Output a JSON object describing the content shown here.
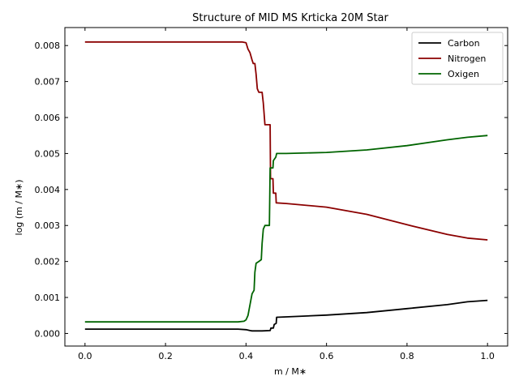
{
  "chart_data": {
    "type": "line",
    "title": "Structure of MID MS Krticka 20M Star",
    "xlabel": "m / M∗",
    "ylabel": "log (m / M∗)",
    "xlim": [
      -0.05,
      1.05
    ],
    "ylim": [
      -0.00035,
      0.0085
    ],
    "xticks": [
      0.0,
      0.2,
      0.4,
      0.6,
      0.8,
      1.0
    ],
    "xtick_labels": [
      "0.0",
      "0.2",
      "0.4",
      "0.6",
      "0.8",
      "1.0"
    ],
    "yticks": [
      0.0,
      0.001,
      0.002,
      0.003,
      0.004,
      0.005,
      0.006,
      0.007,
      0.008
    ],
    "ytick_labels": [
      "0.000",
      "0.001",
      "0.002",
      "0.003",
      "0.004",
      "0.005",
      "0.006",
      "0.007",
      "0.008"
    ],
    "grid": false,
    "legend_position": "top-right",
    "series": [
      {
        "name": "Carbon",
        "color": "#000000",
        "points": [
          [
            0.0,
            0.00012
          ],
          [
            0.38,
            0.00012
          ],
          [
            0.4,
            0.000105
          ],
          [
            0.41,
            8e-05
          ],
          [
            0.415,
            7e-05
          ],
          [
            0.44,
            7e-05
          ],
          [
            0.46,
            8e-05
          ],
          [
            0.462,
            0.00015
          ],
          [
            0.468,
            0.00015
          ],
          [
            0.47,
            0.00025
          ],
          [
            0.475,
            0.00028
          ],
          [
            0.476,
            0.00045
          ],
          [
            0.5,
            0.00046
          ],
          [
            0.6,
            0.00051
          ],
          [
            0.7,
            0.00058
          ],
          [
            0.8,
            0.00069
          ],
          [
            0.9,
            0.0008
          ],
          [
            0.95,
            0.00088
          ],
          [
            1.0,
            0.00092
          ]
        ]
      },
      {
        "name": "Nitrogen",
        "color": "#8b0000",
        "points": [
          [
            0.0,
            0.0081
          ],
          [
            0.39,
            0.0081
          ],
          [
            0.4,
            0.00808
          ],
          [
            0.405,
            0.0079
          ],
          [
            0.41,
            0.0078
          ],
          [
            0.415,
            0.0076
          ],
          [
            0.418,
            0.0075
          ],
          [
            0.422,
            0.0075
          ],
          [
            0.425,
            0.0072
          ],
          [
            0.428,
            0.0068
          ],
          [
            0.432,
            0.0067
          ],
          [
            0.44,
            0.0067
          ],
          [
            0.443,
            0.0064
          ],
          [
            0.447,
            0.0058
          ],
          [
            0.45,
            0.0058
          ],
          [
            0.46,
            0.0058
          ],
          [
            0.461,
            0.0043
          ],
          [
            0.467,
            0.0043
          ],
          [
            0.468,
            0.0039
          ],
          [
            0.474,
            0.0039
          ],
          [
            0.475,
            0.00363
          ],
          [
            0.5,
            0.00361
          ],
          [
            0.6,
            0.00351
          ],
          [
            0.7,
            0.00331
          ],
          [
            0.8,
            0.00302
          ],
          [
            0.9,
            0.00275
          ],
          [
            0.95,
            0.00265
          ],
          [
            1.0,
            0.0026
          ]
        ]
      },
      {
        "name": "Oxigen",
        "color": "#006400",
        "points": [
          [
            0.0,
            0.00032
          ],
          [
            0.38,
            0.00032
          ],
          [
            0.395,
            0.00034
          ],
          [
            0.4,
            0.00038
          ],
          [
            0.405,
            0.0005
          ],
          [
            0.41,
            0.0008
          ],
          [
            0.415,
            0.0011
          ],
          [
            0.42,
            0.0012
          ],
          [
            0.422,
            0.0017
          ],
          [
            0.425,
            0.00195
          ],
          [
            0.432,
            0.002
          ],
          [
            0.438,
            0.00205
          ],
          [
            0.44,
            0.0025
          ],
          [
            0.443,
            0.0029
          ],
          [
            0.447,
            0.003
          ],
          [
            0.458,
            0.003
          ],
          [
            0.46,
            0.0046
          ],
          [
            0.467,
            0.0046
          ],
          [
            0.468,
            0.0048
          ],
          [
            0.474,
            0.0049
          ],
          [
            0.476,
            0.005
          ],
          [
            0.5,
            0.005
          ],
          [
            0.6,
            0.00503
          ],
          [
            0.7,
            0.0051
          ],
          [
            0.8,
            0.00522
          ],
          [
            0.9,
            0.00538
          ],
          [
            0.95,
            0.00545
          ],
          [
            1.0,
            0.0055
          ]
        ]
      }
    ]
  }
}
